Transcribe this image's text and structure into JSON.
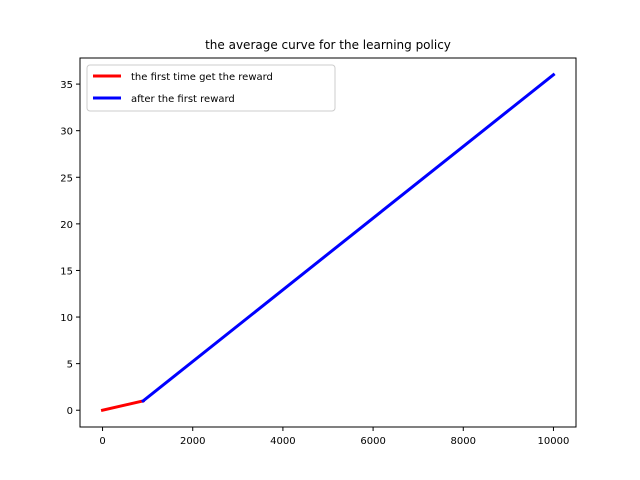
{
  "chart_data": {
    "type": "line",
    "title": "the average curve for the learning policy",
    "xlabel": "",
    "ylabel": "",
    "xlim": [
      -500,
      10500
    ],
    "ylim": [
      -1.8,
      37.8
    ],
    "xticks": [
      0,
      2000,
      4000,
      6000,
      8000,
      10000
    ],
    "yticks": [
      0,
      5,
      10,
      15,
      20,
      25,
      30,
      35
    ],
    "grid": false,
    "legend_position": "upper left",
    "series": [
      {
        "name": "the first time get the reward",
        "color": "#ff0000",
        "x": [
          0,
          900
        ],
        "y": [
          0,
          1
        ]
      },
      {
        "name": "after the first reward",
        "color": "#0000ff",
        "x": [
          900,
          10000
        ],
        "y": [
          1,
          36
        ]
      }
    ]
  }
}
